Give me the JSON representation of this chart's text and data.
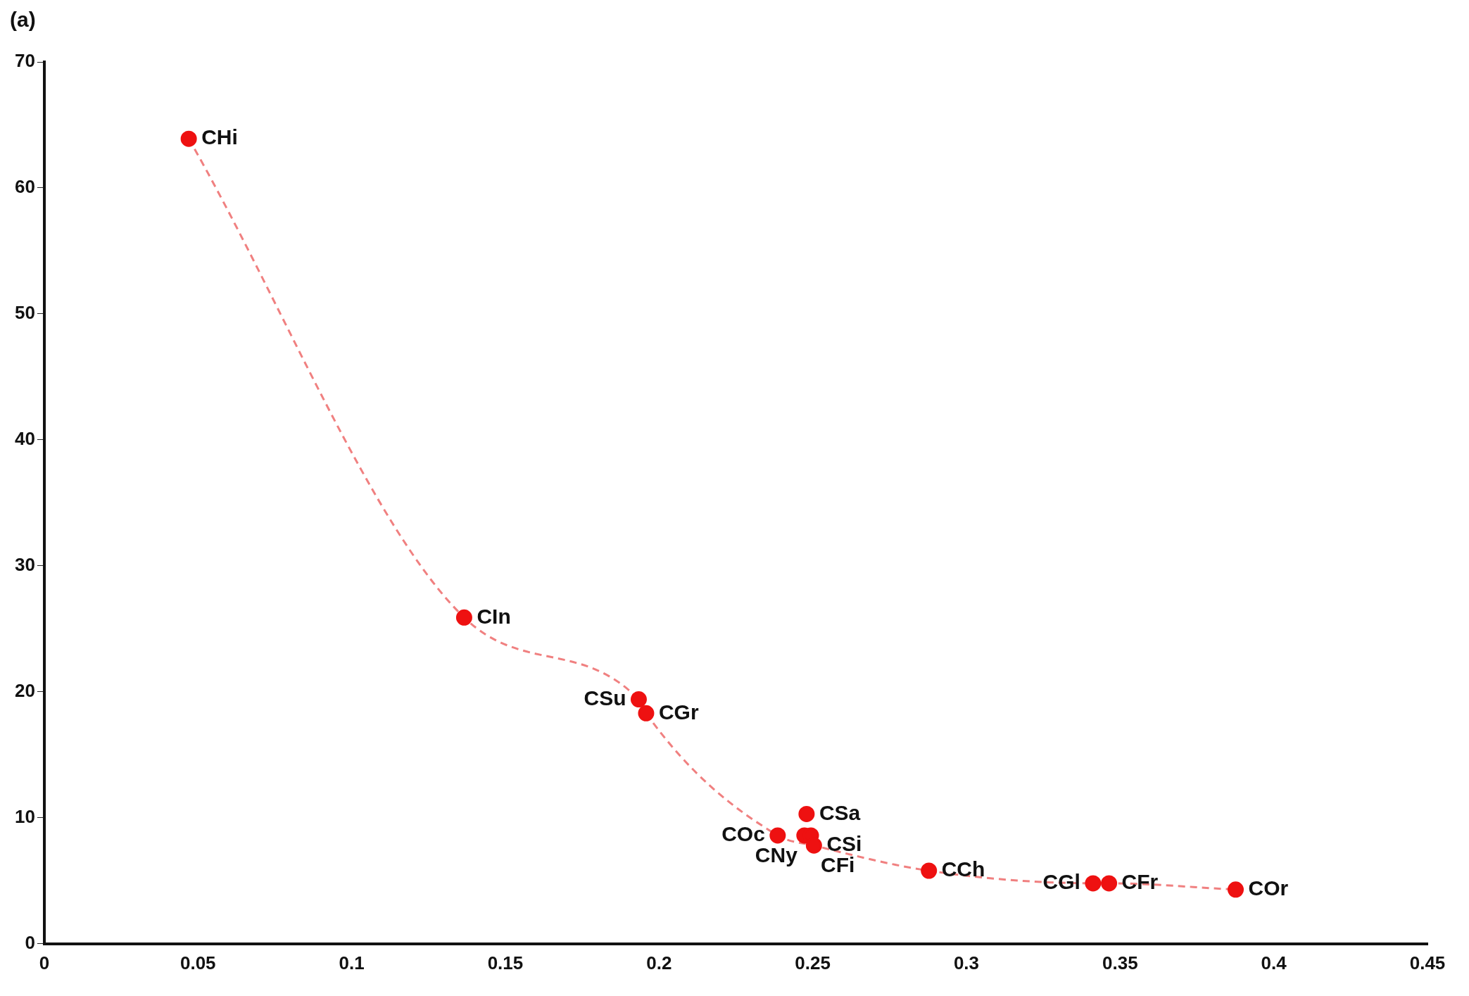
{
  "chart_data": {
    "type": "scatter",
    "marker": "circle",
    "grid": false,
    "legend": false,
    "xlim": [
      0,
      0.45
    ],
    "xticks": [
      0,
      0.05,
      0.1,
      0.15,
      0.2,
      0.25,
      0.3,
      0.35,
      0.4,
      0.45
    ],
    "ylim": [
      0,
      70
    ],
    "yticks": [
      0,
      10,
      20,
      30,
      40,
      50,
      60,
      70
    ],
    "series": [
      {
        "type": "scatter",
        "color": "#ee1111",
        "x": [
          0.047,
          0.1366,
          0.1934,
          0.1958,
          0.2386,
          0.248,
          0.2473,
          0.2494,
          0.2504,
          0.2878,
          0.3412,
          0.3464,
          0.3876
        ],
        "values": [
          63.9,
          25.9,
          19.4,
          18.3,
          8.6,
          10.3,
          8.6,
          8.6,
          7.8,
          5.8,
          4.8,
          4.8,
          4.3
        ]
      },
      {
        "type": "line",
        "color": "#f08080",
        "line_style": "dashed",
        "marker": "none",
        "x": [
          0.047,
          0.1366,
          0.1934,
          0.1958,
          0.2386,
          0.2504,
          0.2878,
          0.3412,
          0.3464,
          0.3876
        ],
        "values": [
          63.9,
          25.9,
          19.4,
          18.3,
          8.6,
          7.8,
          5.8,
          4.8,
          4.8,
          4.3
        ]
      }
    ],
    "annotations": [
      "(a)",
      {
        "text": "CHi",
        "x": 0.047,
        "y": 63.9
      },
      {
        "text": "CIn",
        "x": 0.1366,
        "y": 25.9
      },
      {
        "text": "CSu",
        "x": 0.1934,
        "y": 19.4
      },
      {
        "text": "CGr",
        "x": 0.1958,
        "y": 18.3
      },
      {
        "text": "COc",
        "x": 0.2386,
        "y": 8.6
      },
      {
        "text": "CSa",
        "x": 0.248,
        "y": 10.3
      },
      {
        "text": "CNy",
        "x": 0.2473,
        "y": 8.6
      },
      {
        "text": "CFi",
        "x": 0.2494,
        "y": 8.6
      },
      {
        "text": "CSi",
        "x": 0.2504,
        "y": 7.8
      },
      {
        "text": "CCh",
        "x": 0.2878,
        "y": 5.8
      },
      {
        "text": "CGl",
        "x": 0.3412,
        "y": 4.8
      },
      {
        "text": "CFr",
        "x": 0.3464,
        "y": 4.8
      },
      {
        "text": "COr",
        "x": 0.3876,
        "y": 4.3
      }
    ]
  }
}
